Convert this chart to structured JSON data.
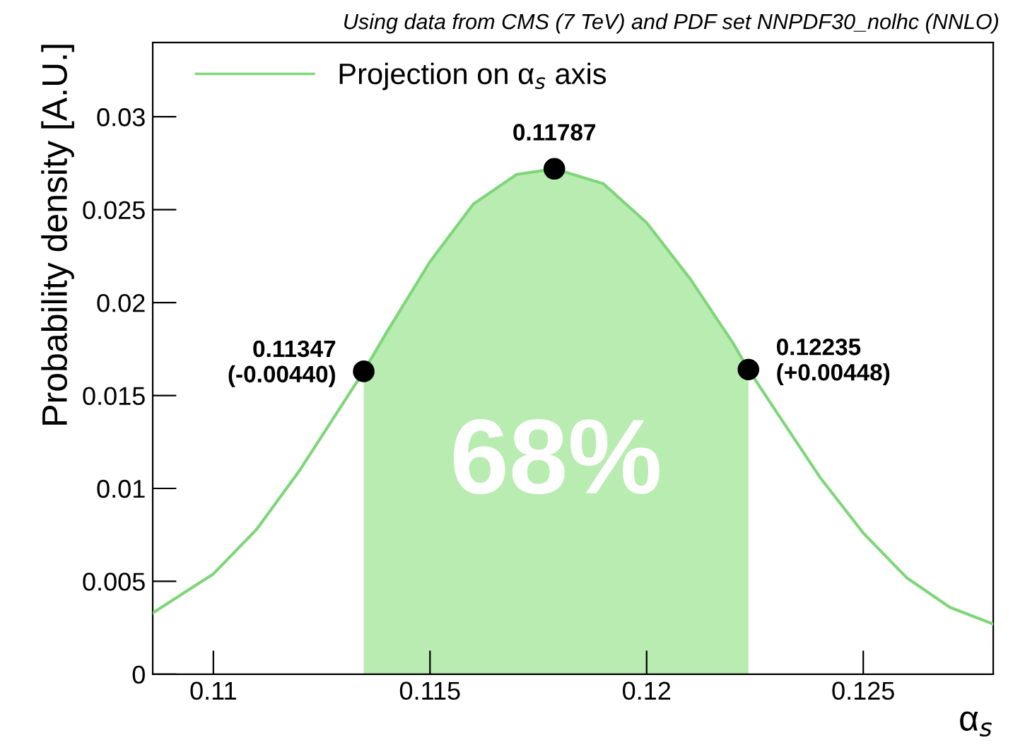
{
  "chart_data": {
    "type": "line",
    "title": "Using data from CMS (7 TeV) and PDF set NNPDF30_nolhc (NNLO)",
    "xlabel": "α$_{s}$",
    "ylabel": "Probability density [A.U.]",
    "xlim": [
      0.1086,
      0.128
    ],
    "ylim": [
      0,
      0.034
    ],
    "xticks": [
      0.11,
      0.115,
      0.12,
      0.125
    ],
    "yticks": [
      0,
      0.005,
      0.01,
      0.015,
      0.02,
      0.025,
      0.03
    ],
    "grid": false,
    "legend": "top left",
    "series": [
      {
        "name": "Projection on α$_{s}$ axis",
        "color": "#7fd67a",
        "marker": "none",
        "x": [
          0.1086,
          0.11,
          0.111,
          0.112,
          0.11347,
          0.114,
          0.115,
          0.116,
          0.117,
          0.11787,
          0.119,
          0.12,
          0.121,
          0.122,
          0.12235,
          0.123,
          0.124,
          0.125,
          0.126,
          0.127,
          0.128
        ],
        "values": [
          0.0033,
          0.0054,
          0.0078,
          0.011,
          0.0163,
          0.0184,
          0.0222,
          0.0253,
          0.0269,
          0.0272,
          0.0264,
          0.0243,
          0.0213,
          0.0178,
          0.0164,
          0.0141,
          0.0106,
          0.0076,
          0.0052,
          0.0036,
          0.0027
        ]
      },
      {
        "type": "area",
        "color": "#b9ecb1",
        "x": [
          0.11347,
          0.114,
          0.115,
          0.116,
          0.117,
          0.11787,
          0.119,
          0.12,
          0.121,
          0.122,
          0.12235
        ],
        "values": [
          0.0163,
          0.0184,
          0.0222,
          0.0253,
          0.0269,
          0.0272,
          0.0264,
          0.0243,
          0.0213,
          0.0178,
          0.0164
        ]
      },
      {
        "type": "scatter",
        "color": "#000000",
        "marker": "circle",
        "x": [
          0.11347,
          0.11787,
          0.12235
        ],
        "values": [
          0.0163,
          0.0272,
          0.0164
        ]
      }
    ],
    "annotations": [
      {
        "text": "0.11347\n(-0.00440)",
        "x": 0.11347,
        "y": 0.0163
      },
      {
        "text": "0.11787",
        "x": 0.11787,
        "y": 0.0272
      },
      {
        "text": "0.12235\n(+0.00448)",
        "x": 0.12235,
        "y": 0.0164
      },
      "68%"
    ]
  }
}
